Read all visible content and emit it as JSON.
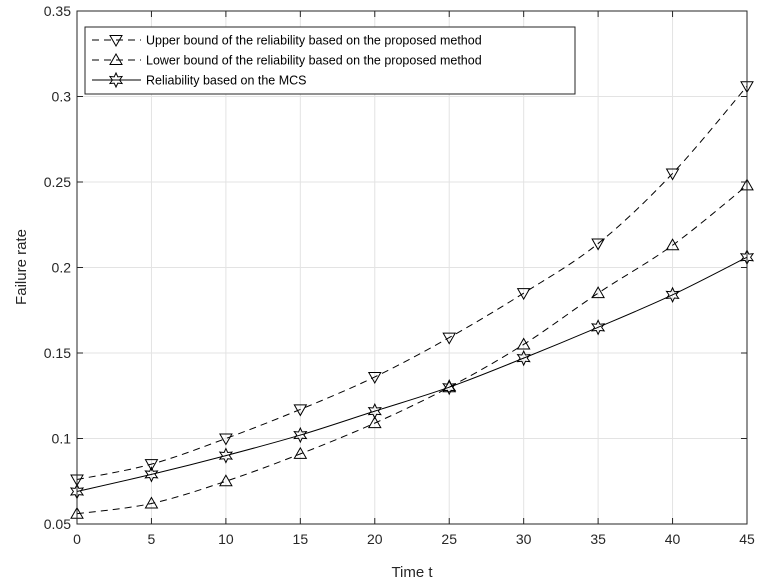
{
  "chart_data": {
    "type": "line",
    "title": "",
    "xlabel": "Time t",
    "ylabel": "Failure rate",
    "xlim": [
      0,
      45
    ],
    "ylim": [
      0.05,
      0.35
    ],
    "xticks": [
      0,
      5,
      10,
      15,
      20,
      25,
      30,
      35,
      40,
      45
    ],
    "yticks": [
      0.05,
      0.1,
      0.15,
      0.2,
      0.25,
      0.3,
      0.35
    ],
    "xtick_labels": [
      "0",
      "5",
      "10",
      "15",
      "20",
      "25",
      "30",
      "35",
      "40",
      "45"
    ],
    "ytick_labels": [
      "0.05",
      "0.1",
      "0.15",
      "0.2",
      "0.25",
      "0.3",
      "0.35"
    ],
    "grid": true,
    "legend_position": "top-left",
    "x": [
      0,
      5,
      10,
      15,
      20,
      25,
      30,
      35,
      40,
      45
    ],
    "series": [
      {
        "name": "Upper bound of the reliability based on the proposed method",
        "marker": "triangle-down",
        "line_style": "dashed",
        "color": "#000000",
        "values": [
          0.076,
          0.085,
          0.1,
          0.117,
          0.136,
          0.159,
          0.185,
          0.214,
          0.255,
          0.306
        ]
      },
      {
        "name": "Lower bound of the reliability based on the proposed method",
        "marker": "triangle-up",
        "line_style": "dashed",
        "color": "#000000",
        "values": [
          0.056,
          0.062,
          0.075,
          0.091,
          0.109,
          0.13,
          0.155,
          0.185,
          0.213,
          0.248
        ]
      },
      {
        "name": "Reliability based on the MCS",
        "marker": "hexagram",
        "line_style": "solid",
        "color": "#000000",
        "values": [
          0.069,
          0.079,
          0.09,
          0.102,
          0.116,
          0.13,
          0.147,
          0.165,
          0.184,
          0.206
        ]
      }
    ]
  }
}
